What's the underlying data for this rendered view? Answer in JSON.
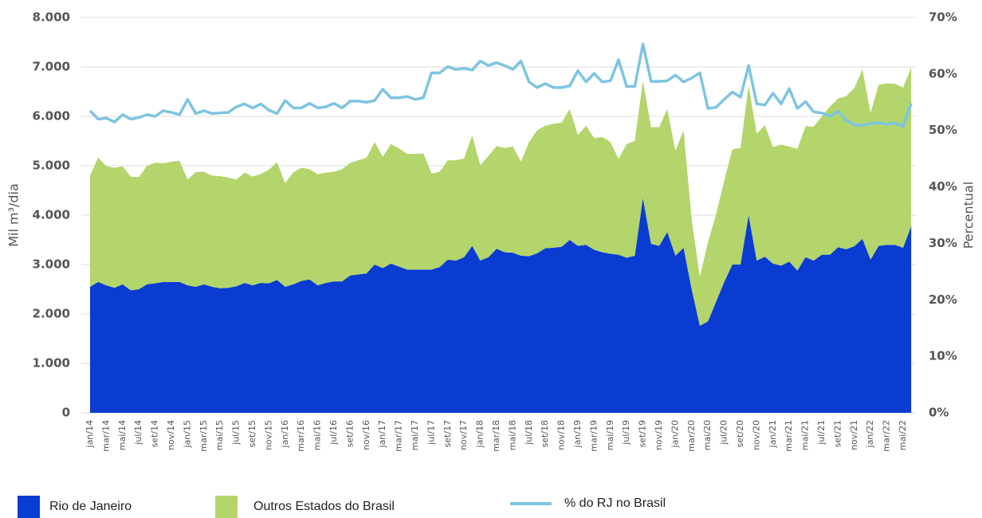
{
  "chart_data": {
    "type": "area",
    "categories": [
      "jan/14",
      null,
      "mar/14",
      null,
      "mai/14",
      null,
      "jul/14",
      null,
      "set/14",
      null,
      "nov/14",
      null,
      "jan/15",
      null,
      "mar/15",
      null,
      "mai/15",
      null,
      "jul/15",
      null,
      "set/15",
      null,
      "nov/15",
      null,
      "jan/16",
      null,
      "mar/16",
      null,
      "mai/16",
      null,
      "jul/16",
      null,
      "set/16",
      null,
      "nov/16",
      null,
      "jan/17",
      null,
      "mar/17",
      null,
      "mai/17",
      null,
      "jul/17",
      null,
      "set/17",
      null,
      "nov/17",
      null,
      "jan/18",
      null,
      "mar/18",
      null,
      "mai/18",
      null,
      "jul/18",
      null,
      "set/18",
      null,
      "nov/18",
      null,
      "jan/19",
      null,
      "mar/19",
      null,
      "mai/19",
      null,
      "jul/19",
      null,
      "set/19",
      null,
      "nov/19",
      null,
      "jan/20",
      null,
      "mar/20",
      null,
      "mai/20",
      null,
      "jul/20",
      null,
      "set/20",
      null,
      "nov/20",
      null,
      "jan/21",
      null,
      "mar/21",
      null,
      "mai/21",
      null,
      "jul/21",
      null,
      "set/21",
      null,
      "nov/21",
      null,
      "jan/22",
      null,
      "mar/22",
      null,
      "mai/22",
      null
    ],
    "series": [
      {
        "name": "Rio de Janeiro",
        "color": "#0a3cd2",
        "stack": true,
        "values": [
          2550,
          2650,
          2580,
          2530,
          2600,
          2480,
          2500,
          2600,
          2620,
          2650,
          2650,
          2650,
          2580,
          2550,
          2600,
          2550,
          2520,
          2530,
          2560,
          2630,
          2580,
          2630,
          2620,
          2690,
          2550,
          2600,
          2670,
          2700,
          2580,
          2630,
          2660,
          2660,
          2780,
          2800,
          2820,
          3000,
          2930,
          3020,
          2960,
          2900,
          2900,
          2900,
          2900,
          2950,
          3100,
          3080,
          3150,
          3380,
          3080,
          3150,
          3320,
          3250,
          3240,
          3180,
          3170,
          3230,
          3330,
          3340,
          3360,
          3500,
          3380,
          3400,
          3300,
          3250,
          3220,
          3200,
          3140,
          3180,
          4350,
          3420,
          3380,
          3660,
          3180,
          3340,
          2500,
          1760,
          1850,
          2250,
          2650,
          3000,
          3000,
          4000,
          3080,
          3160,
          3020,
          2980,
          3060,
          2880,
          3150,
          3080,
          3200,
          3200,
          3350,
          3310,
          3370,
          3520,
          3100,
          3380,
          3400,
          3400,
          3340,
          3780
        ]
      },
      {
        "name": "Outros Estados do Brasil",
        "color": "#b3d56b",
        "stack": true,
        "values": [
          2250,
          2520,
          2410,
          2430,
          2390,
          2300,
          2270,
          2400,
          2440,
          2400,
          2430,
          2450,
          2140,
          2320,
          2280,
          2250,
          2270,
          2230,
          2160,
          2230,
          2200,
          2200,
          2300,
          2380,
          2100,
          2270,
          2290,
          2230,
          2250,
          2230,
          2220,
          2270,
          2280,
          2310,
          2340,
          2480,
          2250,
          2420,
          2390,
          2340,
          2340,
          2350,
          1940,
          1930,
          2010,
          2030,
          2000,
          2230,
          1930,
          2050,
          2080,
          2110,
          2150,
          1900,
          2310,
          2490,
          2480,
          2510,
          2510,
          2650,
          2240,
          2410,
          2260,
          2330,
          2260,
          1940,
          2300,
          2320,
          2370,
          2360,
          2400,
          2490,
          2120,
          2380,
          1400,
          990,
          1600,
          1770,
          2050,
          2330,
          2360,
          2620,
          2570,
          2660,
          2360,
          2450,
          2330,
          2460,
          2650,
          2710,
          2800,
          3000,
          3010,
          3100,
          3200,
          3430,
          2970,
          3260,
          3270,
          3260,
          3240,
          3210
        ]
      },
      {
        "name": "% do RJ no Brasil",
        "color": "#7ec4e2",
        "axis": "y2",
        "line": true,
        "values": [
          53.5,
          52,
          52.2,
          51.5,
          52.8,
          52,
          52.3,
          52.8,
          52.5,
          53.5,
          53.2,
          52.8,
          55.5,
          53,
          53.5,
          53,
          53.1,
          53.2,
          54.2,
          54.7,
          54,
          54.7,
          53.6,
          53,
          55.3,
          54,
          54,
          54.8,
          54,
          54.2,
          54.8,
          54,
          55.2,
          55.2,
          55,
          55.3,
          57.3,
          55.8,
          55.8,
          56,
          55.5,
          55.8,
          60.2,
          60.2,
          61.3,
          60.8,
          61,
          60.7,
          62.3,
          61.5,
          62,
          61.5,
          60.8,
          62.3,
          58.6,
          57.6,
          58.3,
          57.6,
          57.6,
          57.9,
          60.6,
          58.6,
          60.1,
          58.6,
          58.8,
          62.5,
          57.8,
          57.8,
          65.3,
          58.7,
          58.7,
          58.8,
          59.8,
          58.6,
          59.3,
          60.2,
          53.9,
          54.1,
          55.5,
          56.8,
          55.9,
          61.5,
          54.7,
          54.5,
          56.6,
          54.7,
          57.4,
          53.9,
          55.1,
          53.3,
          53.1,
          52.5,
          53.4,
          51.8,
          51,
          50.9,
          51.2,
          51.4,
          51.1,
          51.3,
          50.7,
          54.8
        ]
      }
    ],
    "ylabel": "Mil m³/dia",
    "y2label": "Percentual",
    "ylim": [
      0,
      8000
    ],
    "yticks": [
      0,
      {
        "value": 1000,
        "label": "1.000"
      },
      {
        "value": 2000,
        "label": "2.000"
      },
      {
        "value": 3000,
        "label": "3.000"
      },
      {
        "value": 4000,
        "label": "4.000"
      },
      {
        "value": 5000,
        "label": "5.000"
      },
      {
        "value": 6000,
        "label": "6.000"
      },
      {
        "value": 7000,
        "label": "7.000"
      },
      {
        "value": 8000,
        "label": "8.000"
      }
    ],
    "y2lim": [
      0,
      70
    ],
    "y2ticks": [
      {
        "value": 0,
        "label": "0%"
      },
      {
        "value": 10,
        "label": "10%"
      },
      {
        "value": 20,
        "label": "20%"
      },
      {
        "value": 30,
        "label": "30%"
      },
      {
        "value": 40,
        "label": "40%"
      },
      {
        "value": 50,
        "label": "50%"
      },
      {
        "value": 60,
        "label": "60%"
      },
      {
        "value": 70,
        "label": "70%"
      }
    ],
    "grid": true,
    "legend": "bottom"
  }
}
